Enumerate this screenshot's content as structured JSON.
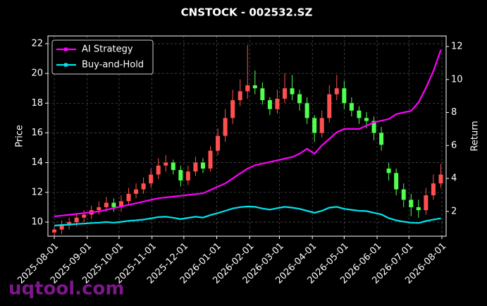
{
  "chart_data": {
    "type": "candlestick",
    "title": "CNSTOCK - 002532.SZ",
    "ylabel": "Price",
    "y2label": "Return",
    "watermark": "uqtool.com",
    "x": [
      "2025-08-01",
      "2025-08-08",
      "2025-08-15",
      "2025-08-22",
      "2025-08-29",
      "2025-09-05",
      "2025-09-12",
      "2025-09-19",
      "2025-09-26",
      "2025-10-03",
      "2025-10-10",
      "2025-10-17",
      "2025-10-24",
      "2025-10-31",
      "2025-11-07",
      "2025-11-14",
      "2025-11-21",
      "2025-11-28",
      "2025-12-05",
      "2025-12-12",
      "2025-12-19",
      "2025-12-26",
      "2026-01-02",
      "2026-01-09",
      "2026-01-16",
      "2026-01-23",
      "2026-01-30",
      "2026-02-06",
      "2026-02-13",
      "2026-02-20",
      "2026-02-27",
      "2026-03-06",
      "2026-03-13",
      "2026-03-20",
      "2026-03-27",
      "2026-04-03",
      "2026-04-10",
      "2026-04-17",
      "2026-04-24",
      "2026-05-01",
      "2026-05-08",
      "2026-05-15",
      "2026-05-22",
      "2026-05-29",
      "2026-06-05",
      "2026-06-12",
      "2026-06-19",
      "2026-06-26",
      "2026-07-03",
      "2026-07-10",
      "2026-07-17",
      "2026-07-24",
      "2026-07-31"
    ],
    "open": [
      9.3,
      9.5,
      9.8,
      10.0,
      10.3,
      10.5,
      10.8,
      11.0,
      11.3,
      11.0,
      11.4,
      11.9,
      12.2,
      12.6,
      13.2,
      13.8,
      14.0,
      13.5,
      12.8,
      13.4,
      14.0,
      13.6,
      14.8,
      15.8,
      17.0,
      18.2,
      18.8,
      19.2,
      19.0,
      18.2,
      17.6,
      18.3,
      19.0,
      18.6,
      18.0,
      17.0,
      16.0,
      17.0,
      18.6,
      19.0,
      18.0,
      17.5,
      17.0,
      16.8,
      16.0,
      13.6,
      13.3,
      12.2,
      11.5,
      11.0,
      10.8,
      11.8,
      12.6
    ],
    "high": [
      9.7,
      10.1,
      10.3,
      10.6,
      10.8,
      11.1,
      11.4,
      11.7,
      11.6,
      11.8,
      12.3,
      12.6,
      13.0,
      13.6,
      14.3,
      14.5,
      14.2,
      13.8,
      13.8,
      14.4,
      14.3,
      15.1,
      16.3,
      17.6,
      18.9,
      19.6,
      21.9,
      20.2,
      19.4,
      18.4,
      18.9,
      20.0,
      19.9,
      18.9,
      18.4,
      17.2,
      17.5,
      19.2,
      19.9,
      19.5,
      18.4,
      17.8,
      17.4,
      17.1,
      16.4,
      14.0,
      13.6,
      12.6,
      11.9,
      11.5,
      12.3,
      13.2,
      13.9
    ],
    "low": [
      9.1,
      9.2,
      9.5,
      9.7,
      10.0,
      10.2,
      10.5,
      10.7,
      10.7,
      10.7,
      11.1,
      11.6,
      11.9,
      12.3,
      12.9,
      13.4,
      13.2,
      12.4,
      12.5,
      13.1,
      13.3,
      13.4,
      14.5,
      15.4,
      16.6,
      17.8,
      18.3,
      18.6,
      17.9,
      17.2,
      17.3,
      18.0,
      18.2,
      17.5,
      16.6,
      15.4,
      15.7,
      16.7,
      18.2,
      17.6,
      17.1,
      16.6,
      16.3,
      15.5,
      14.8,
      12.8,
      11.8,
      11.0,
      10.4,
      10.3,
      10.5,
      11.5,
      12.3
    ],
    "close": [
      9.5,
      9.8,
      10.0,
      10.3,
      10.5,
      10.8,
      11.0,
      11.3,
      11.0,
      11.4,
      11.9,
      12.2,
      12.6,
      13.2,
      13.8,
      14.0,
      13.5,
      12.8,
      13.4,
      14.0,
      13.6,
      14.8,
      15.8,
      17.0,
      18.2,
      18.8,
      19.2,
      19.0,
      18.2,
      17.6,
      18.3,
      19.0,
      18.6,
      18.0,
      17.0,
      16.0,
      17.0,
      18.6,
      19.0,
      18.0,
      17.5,
      17.0,
      16.8,
      16.0,
      15.2,
      13.3,
      12.2,
      11.5,
      11.0,
      10.8,
      11.8,
      12.6,
      13.2
    ],
    "up_color": "#ff5050",
    "down_color": "#50ff50",
    "series": [
      {
        "name": "AI Strategy",
        "color": "#ff00ff",
        "axis": "y2",
        "values": [
          1.7,
          1.75,
          1.8,
          1.85,
          1.9,
          1.95,
          2.0,
          2.1,
          2.2,
          2.3,
          2.4,
          2.5,
          2.6,
          2.7,
          2.8,
          2.85,
          2.9,
          2.95,
          3.0,
          3.05,
          3.1,
          3.3,
          3.5,
          3.7,
          4.0,
          4.3,
          4.6,
          4.8,
          4.9,
          5.0,
          5.1,
          5.2,
          5.3,
          5.5,
          5.8,
          5.5,
          6.0,
          6.4,
          6.8,
          7.0,
          7.0,
          7.0,
          7.2,
          7.4,
          7.5,
          7.6,
          7.9,
          8.0,
          8.1,
          8.6,
          9.5,
          10.5,
          11.8
        ]
      },
      {
        "name": "Buy-and-Hold",
        "color": "#00e5ee",
        "axis": "y2",
        "values": [
          1.14,
          1.18,
          1.2,
          1.24,
          1.26,
          1.3,
          1.32,
          1.36,
          1.32,
          1.37,
          1.43,
          1.46,
          1.51,
          1.58,
          1.66,
          1.68,
          1.62,
          1.54,
          1.61,
          1.68,
          1.63,
          1.78,
          1.9,
          2.04,
          2.18,
          2.26,
          2.3,
          2.28,
          2.18,
          2.11,
          2.2,
          2.28,
          2.23,
          2.16,
          2.04,
          1.92,
          2.04,
          2.23,
          2.28,
          2.16,
          2.1,
          2.04,
          2.02,
          1.92,
          1.82,
          1.6,
          1.46,
          1.38,
          1.32,
          1.3,
          1.42,
          1.51,
          1.58
        ]
      }
    ],
    "xlim": [
      "2025-07-26",
      "2026-08-05"
    ],
    "xticks": [
      "2025-08-01",
      "2025-09-01",
      "2025-10-01",
      "2025-11-01",
      "2025-12-01",
      "2026-01-01",
      "2026-02-01",
      "2026-03-01",
      "2026-04-01",
      "2026-05-01",
      "2026-06-01",
      "2026-07-01",
      "2026-08-01"
    ],
    "ylim": [
      9.05,
      22.52
    ],
    "yticks": [
      10,
      12,
      14,
      16,
      18,
      20,
      22
    ],
    "y2lim": [
      0.5,
      12.64
    ],
    "y2ticks": [
      2,
      4,
      6,
      8,
      10,
      12
    ],
    "grid": true,
    "legend": "upper left"
  }
}
